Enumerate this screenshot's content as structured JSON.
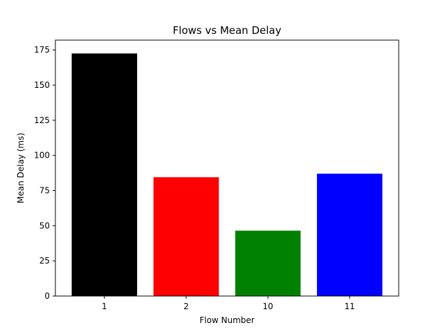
{
  "chart_data": {
    "type": "bar",
    "title": "Flows vs Mean Delay",
    "xlabel": "Flow Number",
    "ylabel": "Mean Delay (ms)",
    "categories": [
      "1",
      "2",
      "10",
      "11"
    ],
    "values": [
      172.5,
      84.5,
      46.5,
      87.0
    ],
    "colors": [
      "#000000",
      "#ff0000",
      "#008000",
      "#0000ff"
    ],
    "ylim": [
      0,
      182
    ],
    "yticks": [
      0,
      25,
      50,
      75,
      100,
      125,
      150,
      175
    ],
    "grid": false,
    "legend": "none"
  }
}
